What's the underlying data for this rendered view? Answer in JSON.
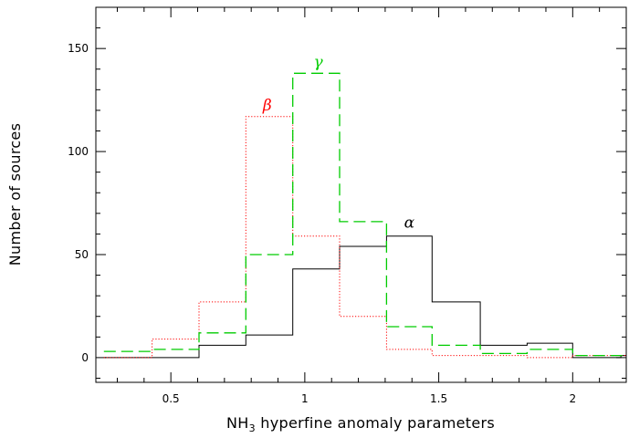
{
  "chart_data": {
    "type": "histogram",
    "xlabel": {
      "main": "NH",
      "sub": "3",
      "rest": " hyperfine anomaly parameters"
    },
    "ylabel": "Number of sources",
    "xlim": [
      0.22,
      2.2
    ],
    "ylim": [
      -12,
      170
    ],
    "xticks": [
      0.5,
      1,
      1.5,
      2
    ],
    "xtick_labels": [
      "0.5",
      "1",
      "1.5",
      "2"
    ],
    "yticks": [
      0,
      50,
      100,
      150
    ],
    "ytick_labels": [
      "0",
      "50",
      "100",
      "150"
    ],
    "grid": false,
    "series": [
      {
        "name": "α",
        "color": "#000000",
        "style": "solid",
        "label_pos": [
          1.39,
          63
        ],
        "steps": [
          [
            0.25,
            0
          ],
          [
            0.605,
            0
          ],
          [
            0.605,
            6
          ],
          [
            0.78,
            6
          ],
          [
            0.78,
            11
          ],
          [
            0.955,
            11
          ],
          [
            0.955,
            43
          ],
          [
            1.13,
            43
          ],
          [
            1.13,
            54
          ],
          [
            1.305,
            54
          ],
          [
            1.305,
            59
          ],
          [
            1.475,
            59
          ],
          [
            1.475,
            27
          ],
          [
            1.655,
            27
          ],
          [
            1.655,
            6
          ],
          [
            1.83,
            6
          ],
          [
            1.83,
            7
          ],
          [
            2.0,
            7
          ],
          [
            2.0,
            0
          ],
          [
            2.18,
            0
          ],
          [
            2.18,
            1
          ],
          [
            2.2,
            1
          ]
        ]
      },
      {
        "name": "β",
        "color": "#ff0000",
        "style": "dotted",
        "label_pos": [
          0.86,
          120
        ],
        "steps": [
          [
            0.25,
            0
          ],
          [
            0.43,
            0
          ],
          [
            0.43,
            9
          ],
          [
            0.605,
            9
          ],
          [
            0.605,
            27
          ],
          [
            0.78,
            27
          ],
          [
            0.78,
            117
          ],
          [
            0.955,
            117
          ],
          [
            0.955,
            59
          ],
          [
            1.13,
            59
          ],
          [
            1.13,
            20
          ],
          [
            1.305,
            20
          ],
          [
            1.305,
            4
          ],
          [
            1.475,
            4
          ],
          [
            1.475,
            1
          ],
          [
            1.83,
            1
          ],
          [
            1.83,
            0
          ],
          [
            2.0,
            0
          ],
          [
            2.0,
            1
          ],
          [
            2.2,
            1
          ]
        ]
      },
      {
        "name": "γ",
        "color": "#00cc00",
        "style": "dashed",
        "label_pos": [
          1.05,
          141
        ],
        "steps": [
          [
            0.25,
            3
          ],
          [
            0.43,
            3
          ],
          [
            0.43,
            4
          ],
          [
            0.605,
            4
          ],
          [
            0.605,
            12
          ],
          [
            0.78,
            12
          ],
          [
            0.78,
            50
          ],
          [
            0.955,
            50
          ],
          [
            0.955,
            138
          ],
          [
            1.13,
            138
          ],
          [
            1.13,
            66
          ],
          [
            1.305,
            66
          ],
          [
            1.305,
            15
          ],
          [
            1.475,
            15
          ],
          [
            1.475,
            6
          ],
          [
            1.655,
            6
          ],
          [
            1.655,
            2
          ],
          [
            1.83,
            2
          ],
          [
            1.83,
            4
          ],
          [
            2.0,
            4
          ],
          [
            2.0,
            1
          ],
          [
            2.2,
            1
          ]
        ]
      }
    ]
  }
}
